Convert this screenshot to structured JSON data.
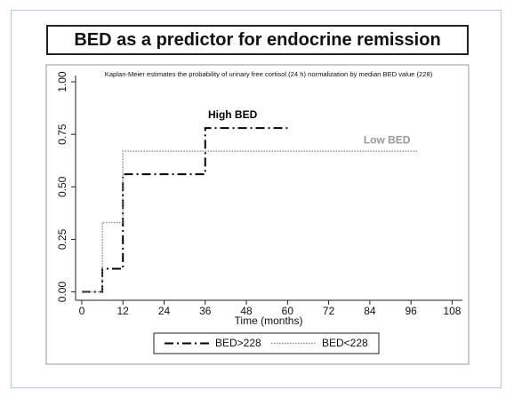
{
  "chart_data": {
    "type": "step",
    "title": "BED as a predictor for endocrine remission",
    "subtitle": "Kaplan-Meier estimates the probability of urinary free cortisol (24 h) normalization by median BED value (228)",
    "x_label": "Time (months)",
    "xlim": [
      -1.8,
      111
    ],
    "xticks": [
      0,
      12,
      24,
      36,
      48,
      60,
      72,
      84,
      96,
      108
    ],
    "ylim": [
      -0.04,
      1.03
    ],
    "yticks": [
      {
        "value": 0,
        "label": "0.00"
      },
      {
        "value": 0.25,
        "label": "0.25"
      },
      {
        "value": 0.5,
        "label": "0.50"
      },
      {
        "value": 0.75,
        "label": "0.75"
      },
      {
        "value": 1,
        "label": "1.00"
      }
    ],
    "series": [
      {
        "name": "BED>228",
        "color": "#000000",
        "dash": "10 4 2 4",
        "x": [
          0,
          6,
          12,
          36,
          60
        ],
        "values": [
          0,
          0.11,
          0.56,
          0.78,
          0.78
        ]
      },
      {
        "name": "BED<228",
        "color": "#808080",
        "dash": "1.5 1.5",
        "x": [
          0,
          6,
          12,
          98
        ],
        "values": [
          0,
          0.33,
          0.67,
          0.67
        ]
      }
    ],
    "annotations": [
      {
        "text": "High BED",
        "x": 44,
        "y": 0.84,
        "color": "#000000"
      },
      {
        "text": "Low BED",
        "x": 89,
        "y": 0.72,
        "color": "#999999"
      }
    ]
  }
}
